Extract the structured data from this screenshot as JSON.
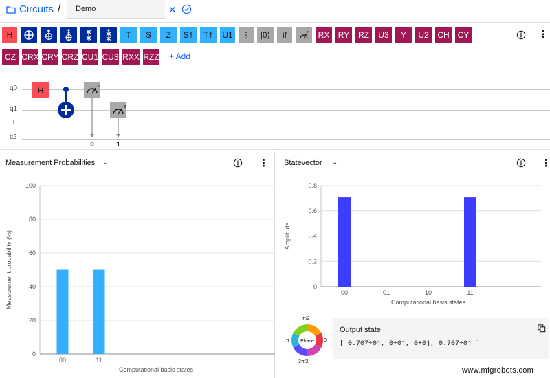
{
  "header": {
    "breadcrumb": "Circuits",
    "separator": "/",
    "circuit_name": "Demo"
  },
  "palette": {
    "row1": [
      {
        "id": "h",
        "label": "H",
        "color": "#fa4d56"
      },
      {
        "id": "cnot",
        "label": "",
        "color": "#002d9c"
      },
      {
        "id": "toffoli",
        "label": "",
        "color": "#002d9c"
      },
      {
        "id": "ccx3",
        "label": "",
        "color": "#002d9c"
      },
      {
        "id": "swap",
        "label": "",
        "color": "#002d9c"
      },
      {
        "id": "swap2",
        "label": "",
        "color": "#002d9c"
      },
      {
        "id": "t",
        "label": "T",
        "color": "#33b1ff"
      },
      {
        "id": "s",
        "label": "S",
        "color": "#33b1ff"
      },
      {
        "id": "z",
        "label": "Z",
        "color": "#33b1ff"
      },
      {
        "id": "sdg",
        "label": "S†",
        "color": "#33b1ff"
      },
      {
        "id": "tdg",
        "label": "T†",
        "color": "#33b1ff"
      },
      {
        "id": "u1",
        "label": "U1",
        "color": "#33b1ff"
      },
      {
        "id": "barrier",
        "label": "⋮",
        "color": "#a8a8a8"
      },
      {
        "id": "reset",
        "label": "|0⟩",
        "color": "#a8a8a8"
      },
      {
        "id": "if",
        "label": "if",
        "color": "#a8a8a8"
      },
      {
        "id": "measure",
        "label": "",
        "color": "#a8a8a8"
      },
      {
        "id": "rx",
        "label": "RX",
        "color": "#9f1853"
      },
      {
        "id": "ry",
        "label": "RY",
        "color": "#9f1853"
      },
      {
        "id": "rz",
        "label": "RZ",
        "color": "#9f1853"
      },
      {
        "id": "u3",
        "label": "U3",
        "color": "#9f1853"
      },
      {
        "id": "y",
        "label": "Y",
        "color": "#9f1853"
      },
      {
        "id": "u2",
        "label": "U2",
        "color": "#9f1853"
      },
      {
        "id": "ch",
        "label": "CH",
        "color": "#9f1853"
      },
      {
        "id": "cy",
        "label": "CY",
        "color": "#9f1853"
      }
    ],
    "row2": [
      {
        "id": "cz",
        "label": "CZ",
        "color": "#9f1853"
      },
      {
        "id": "crx",
        "label": "CRX",
        "color": "#9f1853"
      },
      {
        "id": "cry",
        "label": "CRY",
        "color": "#9f1853"
      },
      {
        "id": "crz",
        "label": "CRZ",
        "color": "#9f1853"
      },
      {
        "id": "cu1",
        "label": "CU1",
        "color": "#9f1853"
      },
      {
        "id": "cu3",
        "label": "CU3",
        "color": "#9f1853"
      },
      {
        "id": "rxx",
        "label": "RXX",
        "color": "#9f1853"
      },
      {
        "id": "rzz",
        "label": "RZZ",
        "color": "#9f1853"
      }
    ],
    "add_label": "+ Add"
  },
  "circuit": {
    "wires": [
      "q0",
      "q1",
      "+",
      "c2"
    ],
    "gate_h": "H",
    "measure_targets": [
      "0",
      "1"
    ],
    "measure_basis": "z"
  },
  "measurement_panel": {
    "title": "Measurement Probabilities",
    "chart_data": {
      "type": "bar",
      "categories": [
        "00",
        "11"
      ],
      "values": [
        50,
        50
      ],
      "xlabel": "Computational basis states",
      "ylabel": "Measurement probability (%)",
      "ylim": [
        0,
        100
      ],
      "yticks": [
        "0",
        "20",
        "40",
        "60",
        "80",
        "100"
      ],
      "bar_color": "#33b1ff"
    }
  },
  "statevector_panel": {
    "title": "Statevector",
    "chart_data": {
      "type": "bar",
      "categories": [
        "00",
        "01",
        "10",
        "11"
      ],
      "values": [
        0.707,
        0,
        0,
        0.707
      ],
      "xlabel": "Computational basis states",
      "ylabel": "Amplitude",
      "ylim": [
        0,
        0.8
      ],
      "yticks": [
        "0",
        "0.2",
        "0.4",
        "0.6",
        "0.8"
      ],
      "bar_color": "#3d3dff"
    },
    "phase_wheel": {
      "center_label": "Phase",
      "top": "π/2",
      "left": "π",
      "right": "0",
      "bottom": "3π/2"
    },
    "output": {
      "title": "Output state",
      "value": "[ 0.707+0j, 0+0j, 0+0j, 0.707+0j ]"
    }
  },
  "watermark": "www.mfgrobots.com"
}
